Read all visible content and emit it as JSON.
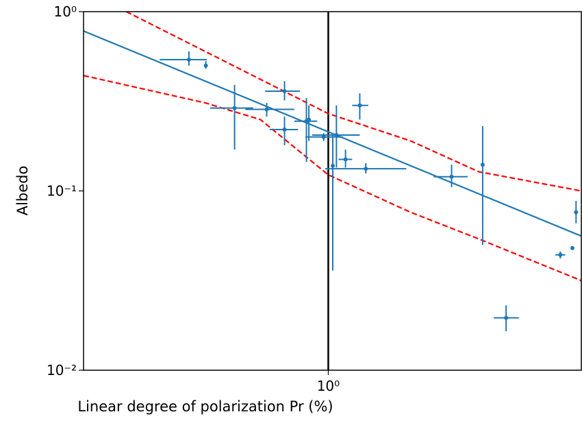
{
  "chart_data": {
    "type": "scatter",
    "xlabel": "Linear degree of polarization Pr (%)",
    "ylabel": "Albedo",
    "log_x": true,
    "log_y": true,
    "xlim": [
      0.2,
      5.28
    ],
    "ylim": [
      0.01,
      1
    ],
    "xticks": [
      {
        "value": 1,
        "label": "10⁰"
      }
    ],
    "yticks": [
      {
        "value": 0.01,
        "label": "10⁻²"
      },
      {
        "value": 0.1,
        "label": "10⁻¹"
      },
      {
        "value": 1,
        "label": "10⁰"
      }
    ],
    "vline": 1,
    "vline_color": "#000000",
    "point_color": "#1f77b4",
    "points": [
      {
        "x": 0.4,
        "y": 0.54,
        "x_low": 0.33,
        "x_high": 0.45,
        "y_low": 0.5,
        "y_high": 0.6
      },
      {
        "x": 0.447,
        "y": 0.5,
        "x_low": null,
        "x_high": null,
        "y_low": 0.48,
        "y_high": 0.53
      },
      {
        "x": 0.54,
        "y": 0.29,
        "x_low": 0.46,
        "x_high": 0.61,
        "y_low": 0.17,
        "y_high": 0.39
      },
      {
        "x": 0.667,
        "y": 0.285,
        "x_low": 0.58,
        "x_high": 0.8,
        "y_low": 0.26,
        "y_high": 0.31
      },
      {
        "x": 0.75,
        "y": 0.36,
        "x_low": 0.66,
        "x_high": 0.83,
        "y_low": 0.32,
        "y_high": 0.41
      },
      {
        "x": 0.75,
        "y": 0.22,
        "x_low": 0.68,
        "x_high": 0.82,
        "y_low": 0.18,
        "y_high": 0.26
      },
      {
        "x": 0.866,
        "y": 0.245,
        "x_low": 0.8,
        "x_high": 0.93,
        "y_low": 0.145,
        "y_high": 0.33
      },
      {
        "x": 0.88,
        "y": 0.25,
        "x_low": null,
        "x_high": null,
        "y_low": 0.19,
        "y_high": 0.3
      },
      {
        "x": 0.97,
        "y": 0.2,
        "x_low": 0.86,
        "x_high": 1.1,
        "y_low": 0.19,
        "y_high": 0.21
      },
      {
        "x": 1.03,
        "y": 0.138,
        "x_low": null,
        "x_high": null,
        "y_low": 0.036,
        "y_high": 0.205
      },
      {
        "x": 1.055,
        "y": 0.205,
        "x_low": 0.9,
        "x_high": 1.23,
        "y_low": 0.135,
        "y_high": 0.3
      },
      {
        "x": 1.12,
        "y": 0.15,
        "x_low": 1.07,
        "x_high": 1.17,
        "y_low": 0.135,
        "y_high": 0.17
      },
      {
        "x": 1.23,
        "y": 0.3,
        "x_low": 1.17,
        "x_high": 1.3,
        "y_low": 0.25,
        "y_high": 0.35
      },
      {
        "x": 1.28,
        "y": 0.133,
        "x_low": 0.98,
        "x_high": 1.67,
        "y_low": 0.125,
        "y_high": 0.143
      },
      {
        "x": 2.25,
        "y": 0.12,
        "x_low": 2.0,
        "x_high": 2.5,
        "y_low": 0.105,
        "y_high": 0.14
      },
      {
        "x": 2.76,
        "y": 0.14,
        "x_low": null,
        "x_high": null,
        "y_low": 0.05,
        "y_high": 0.23
      },
      {
        "x": 3.22,
        "y": 0.0196,
        "x_low": 2.97,
        "x_high": 3.5,
        "y_low": 0.0165,
        "y_high": 0.023
      },
      {
        "x": 4.6,
        "y": 0.044,
        "x_low": 4.45,
        "x_high": 4.75,
        "y_low": 0.042,
        "y_high": 0.046
      },
      {
        "x": 4.98,
        "y": 0.048,
        "x_low": null,
        "x_high": null,
        "y_low": null,
        "y_high": null
      },
      {
        "x": 5.1,
        "y": 0.076,
        "x_low": null,
        "x_high": null,
        "y_low": 0.066,
        "y_high": 0.088
      }
    ],
    "lines": [
      {
        "color": "#1f77b4",
        "dashed": false,
        "x": [
          0.2,
          5.28
        ],
        "y": [
          0.78,
          0.056
        ]
      },
      {
        "color": "#ff0000",
        "dashed": true,
        "x": [
          0.265,
          0.445,
          1.0,
          1.72,
          2.69,
          5.28
        ],
        "y": [
          1.0,
          0.6,
          0.27,
          0.19,
          0.128,
          0.1
        ]
      },
      {
        "color": "#ff0000",
        "dashed": true,
        "x": [
          0.2,
          0.445,
          0.64,
          1.0,
          1.72,
          2.69,
          5.28
        ],
        "y": [
          0.44,
          0.31,
          0.25,
          0.123,
          0.076,
          0.054,
          0.0316
        ]
      }
    ]
  }
}
